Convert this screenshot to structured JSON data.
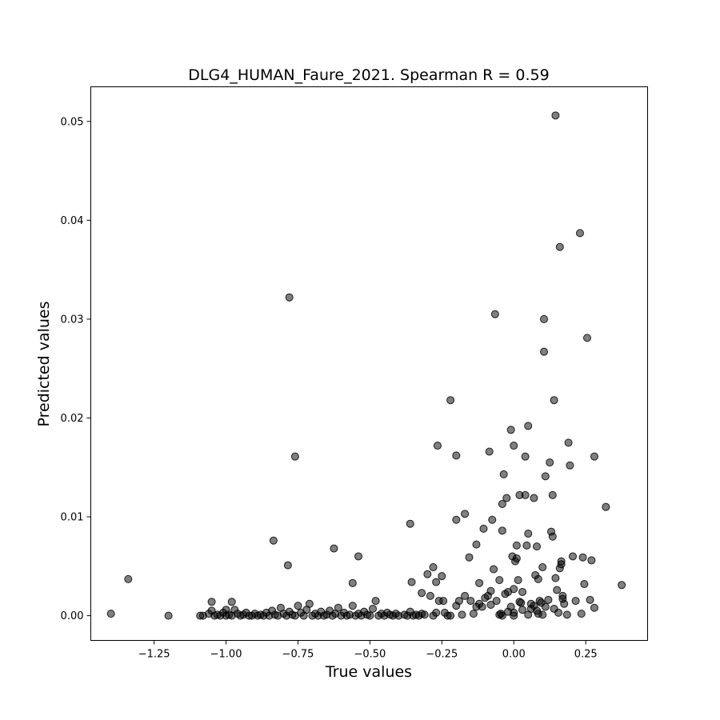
{
  "chart_data": {
    "type": "scatter",
    "title": "DLG4_HUMAN_Faure_2021. Spearman R = 0.59",
    "xlabel": "True values",
    "ylabel": "Predicted values",
    "xlim": [
      -1.47,
      0.465
    ],
    "ylim": [
      -0.0025,
      0.0535
    ],
    "grid": false,
    "xticks": [
      {
        "value": -1.25,
        "label": "−1.25"
      },
      {
        "value": -1.0,
        "label": "−1.00"
      },
      {
        "value": -0.75,
        "label": "−0.75"
      },
      {
        "value": -0.5,
        "label": "−0.50"
      },
      {
        "value": -0.25,
        "label": "−0.25"
      },
      {
        "value": 0.0,
        "label": "0.00"
      },
      {
        "value": 0.25,
        "label": "0.25"
      }
    ],
    "yticks": [
      {
        "value": 0.0,
        "label": "0.00"
      },
      {
        "value": 0.01,
        "label": "0.01"
      },
      {
        "value": 0.02,
        "label": "0.02"
      },
      {
        "value": 0.03,
        "label": "0.03"
      },
      {
        "value": 0.04,
        "label": "0.04"
      },
      {
        "value": 0.05,
        "label": "0.05"
      }
    ],
    "points": [
      [
        -1.4,
        0.0002
      ],
      [
        -1.34,
        0.0037
      ],
      [
        -1.2,
        0.0
      ],
      [
        -1.09,
        0.0
      ],
      [
        -1.08,
        0.0
      ],
      [
        -1.06,
        0.0002
      ],
      [
        -1.05,
        0.0014
      ],
      [
        -1.05,
        0.0005
      ],
      [
        -1.04,
        0.0
      ],
      [
        -1.03,
        0.0001
      ],
      [
        -1.02,
        0.0
      ],
      [
        -1.01,
        0.0003
      ],
      [
        -1.0,
        0.0006
      ],
      [
        -1.0,
        0.0
      ],
      [
        -0.99,
        0.0001
      ],
      [
        -0.98,
        0.0014
      ],
      [
        -0.98,
        0.0
      ],
      [
        -0.97,
        0.0006
      ],
      [
        -0.96,
        0.0002
      ],
      [
        -0.95,
        0.0
      ],
      [
        -0.94,
        0.0001
      ],
      [
        -0.93,
        0.0003
      ],
      [
        -0.92,
        0.0
      ],
      [
        -0.91,
        0.0
      ],
      [
        -0.9,
        0.0002
      ],
      [
        -0.89,
        0.0
      ],
      [
        -0.88,
        0.0001
      ],
      [
        -0.87,
        0.0
      ],
      [
        -0.86,
        0.0003
      ],
      [
        -0.85,
        0.0
      ],
      [
        -0.84,
        0.0005
      ],
      [
        -0.83,
        0.0001
      ],
      [
        -0.82,
        0.0
      ],
      [
        -0.81,
        0.0008
      ],
      [
        -0.8,
        0.0002
      ],
      [
        -0.79,
        0.0
      ],
      [
        -0.78,
        0.0004
      ],
      [
        -0.77,
        0.0001
      ],
      [
        -0.76,
        0.0
      ],
      [
        -0.75,
        0.001
      ],
      [
        -0.74,
        0.0003
      ],
      [
        -0.73,
        0.0
      ],
      [
        -0.72,
        0.0006
      ],
      [
        -0.71,
        0.0012
      ],
      [
        -0.7,
        0.0
      ],
      [
        -0.69,
        0.0002
      ],
      [
        -0.68,
        0.0
      ],
      [
        -0.67,
        0.0004
      ],
      [
        -0.66,
        0.0
      ],
      [
        -0.65,
        0.0001
      ],
      [
        -0.64,
        0.0005
      ],
      [
        -0.63,
        0.0
      ],
      [
        -0.62,
        0.0002
      ],
      [
        -0.61,
        0.0008
      ],
      [
        -0.6,
        0.0
      ],
      [
        -0.59,
        0.0003
      ],
      [
        -0.58,
        0.0
      ],
      [
        -0.57,
        0.0001
      ],
      [
        -0.56,
        0.001
      ],
      [
        -0.55,
        0.0
      ],
      [
        -0.54,
        0.0002
      ],
      [
        -0.53,
        0.0
      ],
      [
        -0.52,
        0.0004
      ],
      [
        -0.51,
        0.0001
      ],
      [
        -0.5,
        0.0
      ],
      [
        -0.49,
        0.0007
      ],
      [
        -0.48,
        0.0015
      ],
      [
        -0.47,
        0.0
      ],
      [
        -0.46,
        0.0002
      ],
      [
        -0.45,
        0.0
      ],
      [
        -0.44,
        0.0003
      ],
      [
        -0.43,
        0.0001
      ],
      [
        -0.42,
        0.0
      ],
      [
        -0.41,
        0.0002
      ],
      [
        -0.4,
        0.0
      ],
      [
        -0.38,
        0.0001
      ],
      [
        -0.37,
        0.0
      ],
      [
        -0.36,
        0.0004
      ],
      [
        -0.35,
        0.0
      ],
      [
        -0.34,
        0.0001
      ],
      [
        -0.33,
        0.0
      ],
      [
        -0.32,
        0.0002
      ],
      [
        -0.78,
        0.0322
      ],
      [
        -0.76,
        0.0161
      ],
      [
        -0.835,
        0.0076
      ],
      [
        -0.785,
        0.0051
      ],
      [
        -0.625,
        0.0068
      ],
      [
        -0.54,
        0.006
      ],
      [
        -0.56,
        0.0033
      ],
      [
        -0.36,
        0.0093
      ],
      [
        -0.355,
        0.0034
      ],
      [
        -0.32,
        0.0023
      ],
      [
        -0.3,
        0.0042
      ],
      [
        -0.28,
        0.0049
      ],
      [
        -0.27,
        0.0034
      ],
      [
        -0.26,
        0.0015
      ],
      [
        -0.25,
        0.004
      ],
      [
        -0.245,
        0.0015
      ],
      [
        -0.29,
        0.002
      ],
      [
        -0.27,
        0.0003
      ],
      [
        -0.23,
        0.0
      ],
      [
        -0.22,
        0.0218
      ],
      [
        -0.265,
        0.0172
      ],
      [
        -0.2,
        0.0162
      ],
      [
        -0.2,
        0.0097
      ],
      [
        -0.17,
        0.0103
      ],
      [
        -0.155,
        0.0059
      ],
      [
        -0.13,
        0.0072
      ],
      [
        -0.12,
        0.0033
      ],
      [
        -0.105,
        0.0088
      ],
      [
        -0.085,
        0.0166
      ],
      [
        -0.075,
        0.0097
      ],
      [
        -0.07,
        0.0047
      ],
      [
        -0.065,
        0.0305
      ],
      [
        -0.05,
        0.0036
      ],
      [
        -0.04,
        0.0113
      ],
      [
        -0.04,
        0.0086
      ],
      [
        -0.035,
        0.0143
      ],
      [
        -0.025,
        0.0119
      ],
      [
        -0.02,
        0.0024
      ],
      [
        -0.01,
        0.0188
      ],
      [
        -0.005,
        0.006
      ],
      [
        0.0,
        0.0172
      ],
      [
        0.005,
        0.0055
      ],
      [
        0.01,
        0.0071
      ],
      [
        0.01,
        0.0058
      ],
      [
        0.015,
        0.0036
      ],
      [
        0.02,
        0.0122
      ],
      [
        0.025,
        0.0013
      ],
      [
        0.04,
        0.0122
      ],
      [
        0.04,
        0.0161
      ],
      [
        0.045,
        0.0071
      ],
      [
        0.05,
        0.0192
      ],
      [
        0.05,
        0.0083
      ],
      [
        0.07,
        0.0119
      ],
      [
        0.075,
        0.0041
      ],
      [
        0.08,
        0.007
      ],
      [
        0.085,
        0.0037
      ],
      [
        0.09,
        0.0015
      ],
      [
        0.1,
        0.0049
      ],
      [
        0.105,
        0.03
      ],
      [
        0.105,
        0.0267
      ],
      [
        0.11,
        0.0141
      ],
      [
        0.125,
        0.0155
      ],
      [
        0.13,
        0.0085
      ],
      [
        0.135,
        0.008
      ],
      [
        0.135,
        0.0122
      ],
      [
        0.14,
        0.0218
      ],
      [
        0.145,
        0.0506
      ],
      [
        0.145,
        0.0038
      ],
      [
        0.15,
        0.0026
      ],
      [
        0.16,
        0.0373
      ],
      [
        0.16,
        0.0048
      ],
      [
        0.165,
        0.0055
      ],
      [
        0.165,
        0.0052
      ],
      [
        0.17,
        0.002
      ],
      [
        0.175,
        0.0012
      ],
      [
        0.19,
        0.0175
      ],
      [
        0.195,
        0.0152
      ],
      [
        0.205,
        0.006
      ],
      [
        0.215,
        0.0015
      ],
      [
        0.23,
        0.0387
      ],
      [
        0.24,
        0.0059
      ],
      [
        0.245,
        0.0032
      ],
      [
        0.255,
        0.0281
      ],
      [
        0.265,
        0.0016
      ],
      [
        0.27,
        0.0056
      ],
      [
        0.28,
        0.0161
      ],
      [
        0.28,
        0.0008
      ],
      [
        0.32,
        0.011
      ],
      [
        0.375,
        0.0031
      ],
      [
        -0.2,
        0.001
      ],
      [
        -0.18,
        0.0001
      ],
      [
        -0.15,
        0.0015
      ],
      [
        -0.14,
        0.0002
      ],
      [
        -0.12,
        0.0012
      ],
      [
        -0.11,
        0.0009
      ],
      [
        -0.09,
        0.002
      ],
      [
        -0.08,
        0.0011
      ],
      [
        -0.06,
        0.0015
      ],
      [
        -0.05,
        0.0001
      ],
      [
        -0.03,
        0.0022
      ],
      [
        -0.02,
        0.0004
      ],
      [
        -0.01,
        0.0009
      ],
      [
        0.0,
        0.0003
      ],
      [
        0.0,
        0.0027
      ],
      [
        0.02,
        0.0014
      ],
      [
        0.03,
        0.0006
      ],
      [
        0.05,
        0.0001
      ],
      [
        0.06,
        0.0007
      ],
      [
        0.07,
        0.001
      ],
      [
        0.08,
        0.0005
      ],
      [
        0.095,
        0.0013
      ],
      [
        0.1,
        0.0001
      ],
      [
        0.11,
        0.0009
      ],
      [
        0.12,
        0.0016
      ],
      [
        0.14,
        0.0007
      ],
      [
        0.155,
        0.0003
      ],
      [
        0.17,
        0.0017
      ],
      [
        0.185,
        0.0001
      ],
      [
        0.235,
        0.0002
      ],
      [
        -0.17,
        0.002
      ],
      [
        -0.22,
        0.0
      ],
      [
        -0.24,
        0.0003
      ],
      [
        -0.28,
        0.0
      ],
      [
        -0.31,
        0.0001
      ],
      [
        -0.08,
        0.0025
      ],
      [
        -0.04,
        0.0
      ],
      [
        0.0,
        0.0
      ],
      [
        0.03,
        0.0024
      ],
      [
        0.085,
        0.0002
      ],
      [
        -0.045,
        0.0002
      ],
      [
        -0.13,
        0.0009
      ],
      [
        -0.19,
        0.0015
      ],
      [
        -0.1,
        0.0018
      ],
      [
        0.06,
        0.0012
      ]
    ]
  }
}
